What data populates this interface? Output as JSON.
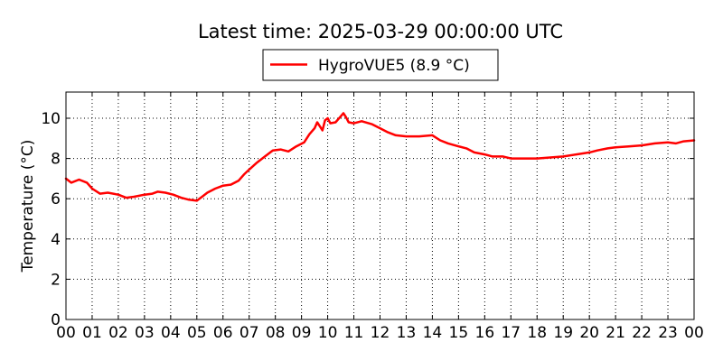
{
  "chart_data": {
    "type": "line",
    "title": "Latest time: 2025-03-29 00:00:00 UTC",
    "ylabel": "Temperature (°C)",
    "xlabel": "",
    "xlim": [
      0,
      24
    ],
    "ylim": [
      0,
      11.3
    ],
    "xticks": [
      "00",
      "01",
      "02",
      "03",
      "04",
      "05",
      "06",
      "07",
      "08",
      "09",
      "10",
      "11",
      "12",
      "13",
      "14",
      "15",
      "16",
      "17",
      "18",
      "19",
      "20",
      "21",
      "22",
      "23",
      "00"
    ],
    "yticks": [
      0,
      2,
      4,
      6,
      8,
      10
    ],
    "grid": true,
    "legend": {
      "position": "top-center"
    },
    "series": [
      {
        "name": "HygroVUE5 (8.9 °C)",
        "color": "#ff0000",
        "x": [
          0.0,
          0.2,
          0.5,
          0.8,
          1.0,
          1.3,
          1.6,
          2.0,
          2.3,
          2.6,
          3.0,
          3.3,
          3.5,
          3.8,
          4.1,
          4.4,
          4.7,
          5.0,
          5.2,
          5.4,
          5.7,
          6.0,
          6.3,
          6.6,
          6.8,
          7.0,
          7.3,
          7.6,
          7.9,
          8.2,
          8.5,
          8.8,
          9.1,
          9.3,
          9.5,
          9.6,
          9.7,
          9.8,
          9.9,
          10.0,
          10.1,
          10.3,
          10.5,
          10.6,
          10.7,
          10.8,
          11.0,
          11.3,
          11.7,
          12.0,
          12.3,
          12.6,
          13.0,
          13.5,
          14.0,
          14.3,
          14.6,
          15.0,
          15.3,
          15.6,
          16.0,
          16.3,
          16.7,
          17.0,
          17.5,
          18.0,
          18.5,
          19.0,
          19.5,
          20.0,
          20.3,
          20.7,
          21.0,
          21.5,
          22.0,
          22.5,
          23.0,
          23.3,
          23.6,
          24.0
        ],
        "values": [
          7.0,
          6.8,
          6.95,
          6.8,
          6.5,
          6.25,
          6.3,
          6.2,
          6.05,
          6.1,
          6.2,
          6.25,
          6.35,
          6.3,
          6.2,
          6.05,
          5.95,
          5.9,
          6.1,
          6.3,
          6.5,
          6.65,
          6.7,
          6.9,
          7.2,
          7.45,
          7.8,
          8.1,
          8.4,
          8.45,
          8.35,
          8.6,
          8.8,
          9.2,
          9.5,
          9.8,
          9.6,
          9.4,
          9.9,
          10.0,
          9.75,
          9.8,
          10.1,
          10.25,
          10.05,
          9.8,
          9.75,
          9.85,
          9.7,
          9.5,
          9.3,
          9.15,
          9.1,
          9.1,
          9.15,
          8.9,
          8.75,
          8.6,
          8.5,
          8.3,
          8.2,
          8.1,
          8.1,
          8.0,
          8.0,
          8.0,
          8.05,
          8.1,
          8.2,
          8.3,
          8.4,
          8.5,
          8.55,
          8.6,
          8.65,
          8.75,
          8.8,
          8.75,
          8.85,
          8.9
        ]
      }
    ]
  }
}
